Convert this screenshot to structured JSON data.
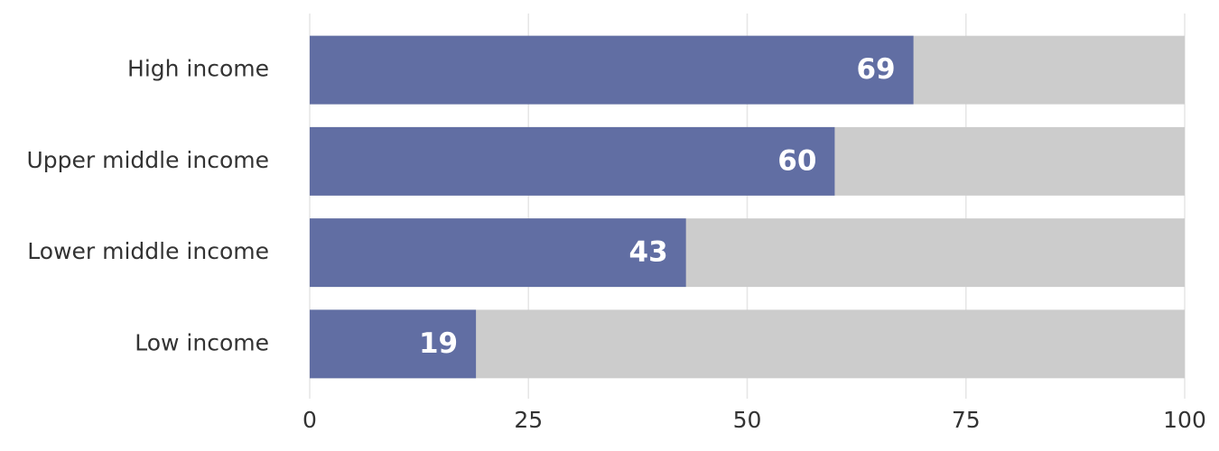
{
  "chart_data": {
    "type": "barh",
    "categories": [
      "High income",
      "Upper middle income",
      "Lower middle income",
      "Low income"
    ],
    "values": [
      69,
      60,
      43,
      19
    ],
    "color": "#616ea3",
    "background_color": "#cccccc",
    "xlim": [
      0,
      100
    ],
    "xticks": [
      0,
      25,
      50,
      75,
      100
    ],
    "grid": true
  }
}
